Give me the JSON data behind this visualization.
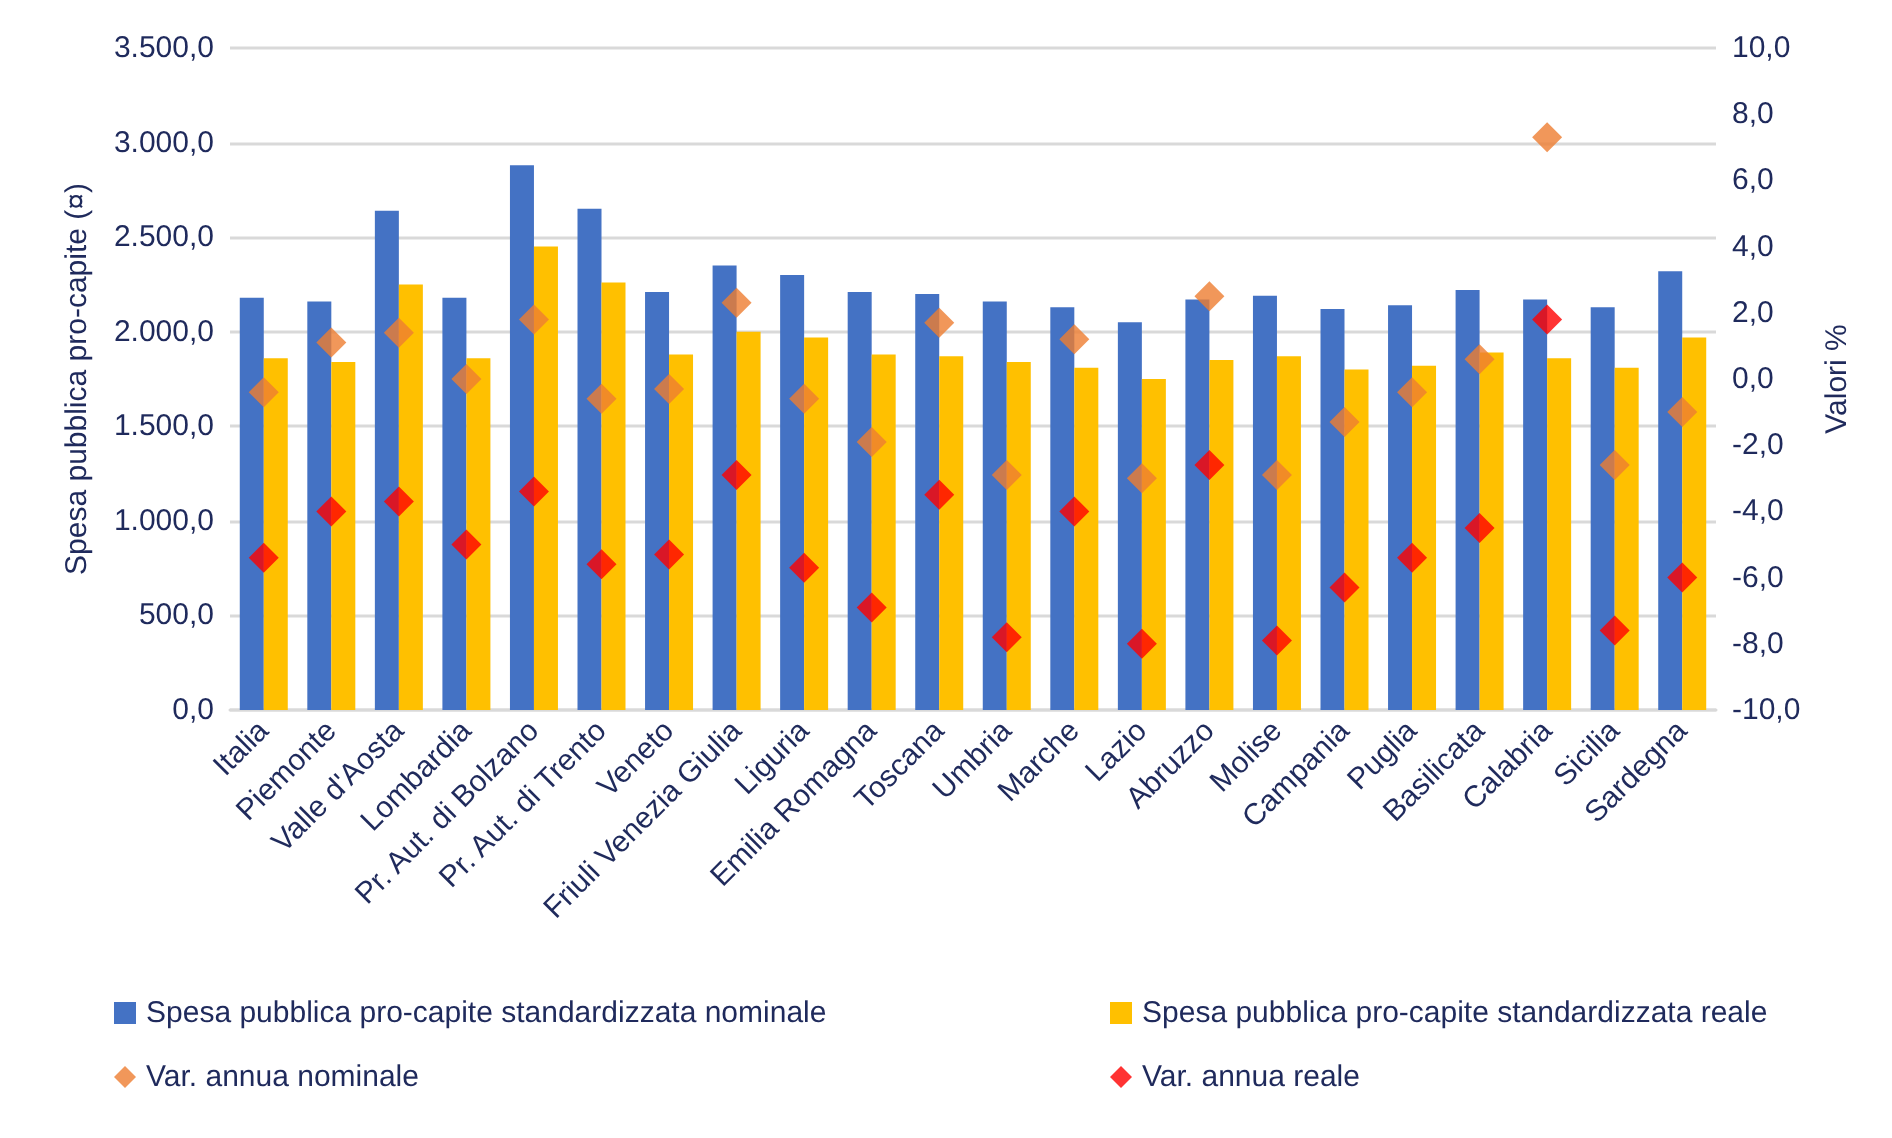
{
  "chart_data": {
    "type": "bar",
    "ylabel": "Spesa pubblica pro-capite (¤)",
    "y2label": "Valori %",
    "categories": [
      "Italia",
      "Piemonte",
      "Valle d'Aosta",
      "Lombardia",
      "Pr. Aut. di Bolzano",
      "Pr. Aut. di Trento",
      "Veneto",
      "Friuli Venezia Giulia",
      "Liguria",
      "Emilia Romagna",
      "Toscana",
      "Umbria",
      "Marche",
      "Lazio",
      "Abruzzo",
      "Molise",
      "Campania",
      "Puglia",
      "Basilicata",
      "Calabria",
      "Sicilia",
      "Sardegna"
    ],
    "series": [
      {
        "name": "Spesa pubblica pro-capite standardizzata nominale",
        "color": "#4472c4",
        "values": [
          2180,
          2160,
          2640,
          2180,
          2880,
          2650,
          2210,
          2350,
          2300,
          2210,
          2200,
          2160,
          2130,
          2050,
          2170,
          2190,
          2120,
          2140,
          2220,
          2170,
          2130,
          2320
        ]
      },
      {
        "name": "Spesa pubblica pro-capite standardizzata reale",
        "color": "#ffc000",
        "values": [
          1860,
          1840,
          2250,
          1860,
          2450,
          2260,
          1880,
          2000,
          1970,
          1880,
          1870,
          1840,
          1810,
          1750,
          1850,
          1870,
          1800,
          1820,
          1890,
          1860,
          1810,
          1970
        ]
      },
      {
        "name": "Var. annua nominale",
        "type": "scatter",
        "axis": "y2",
        "color": "#ed7d31",
        "values": [
          -0.4,
          1.1,
          1.4,
          0.0,
          1.8,
          -0.6,
          -0.3,
          2.3,
          -0.6,
          -1.9,
          1.7,
          -2.9,
          1.2,
          -3.0,
          2.5,
          -2.9,
          -1.3,
          -0.4,
          0.6,
          7.3,
          -2.6,
          -1.0
        ]
      },
      {
        "name": "Var. annua reale",
        "type": "scatter",
        "axis": "y2",
        "color": "#ff0000",
        "values": [
          -5.4,
          -4.0,
          -3.7,
          -5.0,
          -3.4,
          -5.6,
          -5.3,
          -2.9,
          -5.7,
          -6.9,
          -3.5,
          -7.8,
          -4.0,
          -8.0,
          -2.6,
          -7.9,
          -6.3,
          -5.4,
          -4.5,
          1.8,
          -7.6,
          -6.0
        ]
      }
    ],
    "ylim": [
      0,
      3500
    ],
    "yticks": [
      {
        "value": 0,
        "label": "0,0"
      },
      {
        "value": 500,
        "label": "500,0"
      },
      {
        "value": 1000,
        "label": "1.000,0"
      },
      {
        "value": 1500,
        "label": "1.500,0"
      },
      {
        "value": 2000,
        "label": "2.000,0"
      },
      {
        "value": 2500,
        "label": "2.500,0"
      },
      {
        "value": 3000,
        "label": "3.000,0"
      },
      {
        "value": 3500,
        "label": "3.500,0"
      }
    ],
    "y2lim": [
      -10,
      10
    ],
    "y2ticks": [
      {
        "value": -10,
        "label": "-10,0"
      },
      {
        "value": -8,
        "label": "-8,0"
      },
      {
        "value": -6,
        "label": "-6,0"
      },
      {
        "value": -4,
        "label": "-4,0"
      },
      {
        "value": -2,
        "label": "-2,0"
      },
      {
        "value": 0,
        "label": "0,0"
      },
      {
        "value": 2,
        "label": "2,0"
      },
      {
        "value": 4,
        "label": "4,0"
      },
      {
        "value": 6,
        "label": "6,0"
      },
      {
        "value": 8,
        "label": "8,0"
      },
      {
        "value": 10,
        "label": "10,0"
      }
    ],
    "grid": "y",
    "legend": "bottom",
    "marker": "diamond"
  }
}
